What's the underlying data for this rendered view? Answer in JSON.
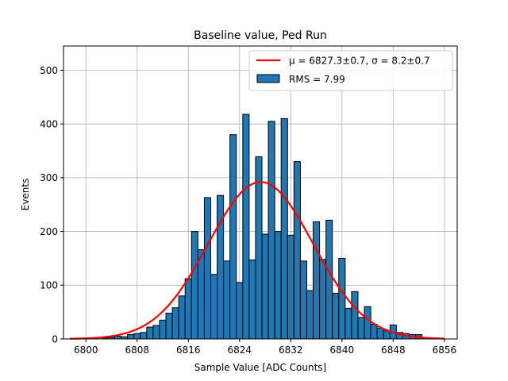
{
  "chart_data": {
    "type": "bar",
    "title": "Baseline value, Ped Run",
    "xlabel": "Sample Value [ADC Counts]",
    "ylabel": "Events",
    "xlim": [
      6796.5,
      6858
    ],
    "ylim": [
      0,
      545
    ],
    "xticks": [
      6800,
      6808,
      6816,
      6824,
      6832,
      6840,
      6848,
      6856
    ],
    "yticks": [
      0,
      100,
      200,
      300,
      400,
      500
    ],
    "grid": true,
    "legend_position": "top-right",
    "bar_width": 1,
    "x": [
      6803,
      6804,
      6805,
      6806,
      6807,
      6808,
      6809,
      6810,
      6811,
      6812,
      6813,
      6814,
      6815,
      6816,
      6817,
      6818,
      6819,
      6820,
      6821,
      6822,
      6823,
      6824,
      6825,
      6826,
      6827,
      6828,
      6829,
      6830,
      6831,
      6832,
      6833,
      6834,
      6835,
      6836,
      6837,
      6838,
      6839,
      6840,
      6841,
      6842,
      6843,
      6844,
      6845,
      6846,
      6847,
      6848,
      6849,
      6850,
      6851,
      6852
    ],
    "values": [
      2,
      3,
      5,
      4,
      8,
      10,
      12,
      22,
      25,
      35,
      48,
      58,
      80,
      112,
      200,
      166,
      263,
      120,
      267,
      145,
      380,
      105,
      418,
      147,
      339,
      195,
      405,
      200,
      410,
      193,
      330,
      145,
      90,
      218,
      148,
      221,
      85,
      150,
      57,
      88,
      40,
      60,
      27,
      20,
      15,
      26,
      12,
      10,
      8,
      8
    ],
    "bar_color": "#1f77b4",
    "bar_edge_color": "#000000",
    "series": [
      {
        "name": "RMS = 7.99",
        "kind": "histogram",
        "color": "#1f77b4"
      },
      {
        "name": "μ = 6827.3±0.7, σ = 8.2±0.7",
        "kind": "gaussian-fit",
        "color": "#ff0000",
        "mu": 6827.3,
        "sigma": 8.2,
        "amplitude": 292,
        "x_range": [
          6797.5,
          6856
        ]
      }
    ]
  }
}
